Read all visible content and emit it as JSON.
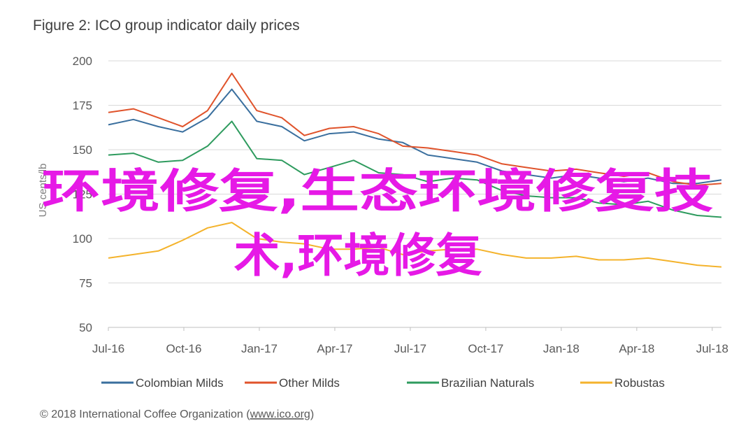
{
  "chart_data": {
    "type": "line",
    "title": "Figure 2: ICO group indicator daily prices",
    "ylabel": "US cents/lb",
    "xlabel": "",
    "ylim": [
      50,
      200
    ],
    "yticks": [
      50,
      75,
      100,
      125,
      150,
      175,
      200
    ],
    "x_range": [
      "2016-07-01",
      "2018-07-31"
    ],
    "x_ticks": [
      "Jul-16",
      "Oct-16",
      "Jan-17",
      "Apr-17",
      "Jul-17",
      "Oct-17",
      "Jan-18",
      "Apr-18",
      "Jul-18"
    ],
    "x": [
      "2016-07-01",
      "2016-08-01",
      "2016-09-01",
      "2016-10-01",
      "2016-11-01",
      "2016-12-01",
      "2017-01-01",
      "2017-02-01",
      "2017-03-01",
      "2017-04-01",
      "2017-05-01",
      "2017-06-01",
      "2017-07-01",
      "2017-08-01",
      "2017-09-01",
      "2017-10-01",
      "2017-11-01",
      "2017-12-01",
      "2018-01-01",
      "2018-02-01",
      "2018-03-01",
      "2018-04-01",
      "2018-05-01",
      "2018-06-01",
      "2018-07-01",
      "2018-07-31"
    ],
    "grid": true,
    "legend_position": "bottom",
    "series": [
      {
        "name": "Colombian Milds",
        "color": "#3a6f9e",
        "values": [
          164,
          167,
          163,
          160,
          168,
          184,
          166,
          163,
          155,
          159,
          160,
          156,
          154,
          147,
          145,
          143,
          138,
          136,
          134,
          136,
          134,
          132,
          134,
          131,
          131,
          133
        ]
      },
      {
        "name": "Other Milds",
        "color": "#e0532b",
        "values": [
          171,
          173,
          168,
          163,
          172,
          193,
          172,
          168,
          158,
          162,
          163,
          159,
          152,
          151,
          149,
          147,
          142,
          140,
          138,
          139,
          137,
          135,
          137,
          132,
          130,
          131
        ]
      },
      {
        "name": "Brazilian Naturals",
        "color": "#2e9b5e",
        "values": [
          147,
          148,
          143,
          144,
          152,
          166,
          145,
          144,
          136,
          140,
          144,
          137,
          136,
          132,
          134,
          133,
          127,
          124,
          123,
          123,
          120,
          119,
          121,
          116,
          113,
          112
        ]
      },
      {
        "name": "Robustas",
        "color": "#f4b32c",
        "values": [
          89,
          91,
          93,
          99,
          106,
          109,
          100,
          98,
          97,
          94,
          94,
          95,
          91,
          93,
          94,
          94,
          91,
          89,
          89,
          90,
          88,
          88,
          89,
          87,
          85,
          84
        ]
      }
    ]
  },
  "overlay": {
    "line1": "环境修复,生态环境修复技",
    "line2": "术,环境修复"
  },
  "footer": {
    "prefix": "© 2018 International Coffee Organization (",
    "link": "www.ico.org",
    "suffix": ")"
  }
}
